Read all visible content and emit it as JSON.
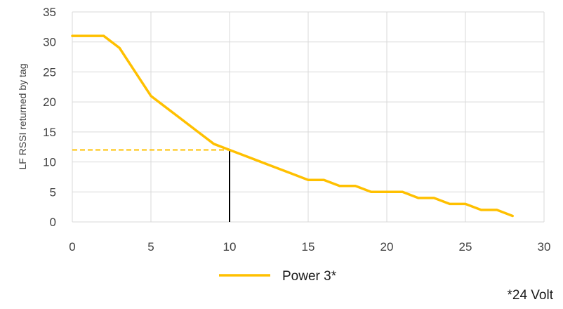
{
  "chart_data": {
    "type": "line",
    "title": "",
    "xlabel": "",
    "ylabel": "LF RSSI returned by tag",
    "xlim": [
      0,
      30
    ],
    "ylim": [
      0,
      35
    ],
    "x_ticks": [
      0,
      5,
      10,
      15,
      20,
      25,
      30
    ],
    "y_ticks": [
      0,
      5,
      10,
      15,
      20,
      25,
      30,
      35
    ],
    "grid": true,
    "legend_position": "bottom",
    "series": [
      {
        "name": "Power 3*",
        "color": "#FFC000",
        "x": [
          0,
          1,
          2,
          3,
          4,
          5,
          6,
          7,
          8,
          9,
          10,
          11,
          12,
          13,
          14,
          15,
          16,
          17,
          18,
          19,
          20,
          21,
          22,
          23,
          24,
          25,
          26,
          27,
          28
        ],
        "y": [
          31,
          31,
          31,
          29,
          25,
          21,
          19,
          17,
          15,
          13,
          12,
          11,
          10,
          9,
          8,
          7,
          7,
          6,
          6,
          5,
          5,
          5,
          4,
          4,
          3,
          3,
          2,
          2,
          1
        ]
      }
    ],
    "annotations": [
      {
        "type": "dashed-horizontal-line",
        "color": "#FFC000",
        "from_x": 0,
        "to_x": 10,
        "y": 12
      },
      {
        "type": "vertical-line",
        "color": "#000000",
        "x": 10,
        "from_y": 0,
        "to_y": 12
      }
    ],
    "footnote": "*24 Volt"
  }
}
